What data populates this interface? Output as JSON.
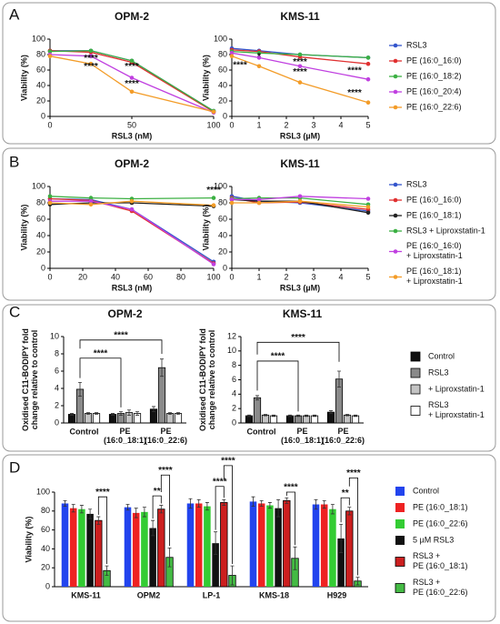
{
  "chart_data": [
    {
      "panel": "A",
      "type": "line",
      "title": "OPM-2",
      "x": [
        0,
        25,
        50,
        100
      ],
      "xlim": [
        0,
        100
      ],
      "xticks": [
        0,
        50,
        100
      ],
      "ylim": [
        0,
        100
      ],
      "yticks": [
        0,
        20,
        40,
        60,
        80,
        100
      ],
      "xlabel": "RSL3 (nM)",
      "ylabel": "Viability (%)",
      "series": [
        {
          "color": "#3355cc",
          "values": [
            85,
            85,
            72,
            7
          ]
        },
        {
          "color": "#e03030",
          "values": [
            85,
            83,
            70,
            6
          ]
        },
        {
          "color": "#3cb043",
          "values": [
            84,
            85,
            72,
            7
          ]
        },
        {
          "color": "#c040e0",
          "values": [
            80,
            78,
            50,
            5
          ]
        },
        {
          "color": "#f39c28",
          "values": [
            78,
            68,
            32,
            6
          ]
        }
      ],
      "annotations": [
        "****",
        "****",
        "****",
        "****"
      ]
    },
    {
      "type": "line",
      "title": "KMS-11",
      "x": [
        0,
        1,
        2.5,
        5
      ],
      "xlim": [
        0,
        5
      ],
      "xticks": [
        0,
        1,
        2,
        3,
        4,
        5
      ],
      "ylim": [
        0,
        100
      ],
      "yticks": [
        0,
        20,
        40,
        60,
        80,
        100
      ],
      "xlabel": "RSL3 (µM)",
      "ylabel": "Viability (%)",
      "series": [
        {
          "name": "RSL3",
          "color": "#3355cc",
          "values": [
            88,
            85,
            80,
            76
          ]
        },
        {
          "name": "PE (16:0_16:0)",
          "color": "#e03030",
          "values": [
            86,
            84,
            77,
            68
          ]
        },
        {
          "name": "PE (16:0_18:2)",
          "color": "#3cb043",
          "values": [
            84,
            82,
            80,
            76
          ]
        },
        {
          "name": "PE (16:0_20:4)",
          "color": "#c040e0",
          "values": [
            82,
            76,
            65,
            48
          ]
        },
        {
          "name": "PE (16:0_22:6)",
          "color": "#f39c28",
          "values": [
            78,
            65,
            44,
            18
          ]
        }
      ],
      "annotations": [
        "****",
        "*",
        "****",
        "****",
        "****",
        "****"
      ]
    },
    {
      "panel": "B",
      "type": "line",
      "title": "OPM-2",
      "x": [
        0,
        25,
        50,
        100
      ],
      "xlim": [
        0,
        100
      ],
      "xticks": [
        0,
        20,
        40,
        60,
        80,
        100
      ],
      "ylim": [
        0,
        100
      ],
      "yticks": [
        0,
        20,
        40,
        60,
        80,
        100
      ],
      "xlabel": "RSL3 (nM)",
      "ylabel": "Viability (%)",
      "series": [
        {
          "color": "#3355cc",
          "values": [
            85,
            84,
            72,
            8
          ]
        },
        {
          "color": "#e03030",
          "values": [
            85,
            83,
            70,
            6
          ]
        },
        {
          "color": "#222222",
          "values": [
            78,
            80,
            80,
            76
          ]
        },
        {
          "color": "#3cb043",
          "values": [
            88,
            86,
            85,
            86
          ]
        },
        {
          "color": "#c040e0",
          "values": [
            82,
            82,
            72,
            5
          ]
        },
        {
          "color": "#f39c28",
          "values": [
            80,
            78,
            82,
            77
          ]
        }
      ],
      "annotations": [
        "****"
      ]
    },
    {
      "type": "line",
      "title": "KMS-11",
      "x": [
        0,
        1,
        2.5,
        5
      ],
      "xlim": [
        0,
        5
      ],
      "xticks": [
        0,
        1,
        2,
        3,
        4,
        5
      ],
      "ylim": [
        0,
        100
      ],
      "yticks": [
        0,
        20,
        40,
        60,
        80,
        100
      ],
      "xlabel": "RSL3 (µM)",
      "ylabel": "Viability (%)",
      "series": [
        {
          "name": "RSL3",
          "color": "#3355cc",
          "values": [
            88,
            82,
            80,
            70
          ]
        },
        {
          "name": "PE (16:0_16:0)",
          "color": "#e03030",
          "values": [
            86,
            80,
            81,
            72
          ]
        },
        {
          "name": "PE (16:0_18:1)",
          "color": "#222222",
          "values": [
            84,
            82,
            82,
            68
          ]
        },
        {
          "name": "RSL3 + Liproxstatin-1",
          "color": "#3cb043",
          "values": [
            85,
            86,
            86,
            78
          ]
        },
        {
          "name": "PE (16:0_16:0)\n+ Liproxstatin-1",
          "color": "#c040e0",
          "values": [
            84,
            84,
            88,
            85
          ]
        },
        {
          "name": "PE (16:0_18:1)\n+ Liproxstatin-1",
          "color": "#f39c28",
          "values": [
            80,
            80,
            82,
            75
          ]
        }
      ]
    },
    {
      "panel": "C",
      "type": "bar",
      "title": "OPM-2",
      "categories": [
        "Control",
        "PE\n(16:0_18:1)",
        "PE\n(16:0_22:6)"
      ],
      "ylim": [
        0,
        10
      ],
      "yticks": [
        0,
        2,
        4,
        6,
        8,
        10
      ],
      "ylabel": "Oxidised C11-BODIPY fold\nchange relative to control",
      "series": [
        {
          "color": "#111111",
          "edgecolor": "#000000",
          "values": [
            1,
            1,
            1.6
          ],
          "errors": [
            0.1,
            0.1,
            0.3
          ]
        },
        {
          "color": "#8a8a8a",
          "edgecolor": "#000000",
          "values": [
            3.9,
            1.1,
            6.4
          ],
          "errors": [
            0.8,
            0.2,
            1.0
          ]
        },
        {
          "color": "#c4c4c4",
          "edgecolor": "#000000",
          "values": [
            1.1,
            1.2,
            1.1
          ],
          "errors": [
            0.1,
            0.3,
            0.1
          ]
        },
        {
          "color": "#ffffff",
          "edgecolor": "#000000",
          "values": [
            1.1,
            1.1,
            1.1
          ],
          "errors": [
            0.1,
            0.2,
            0.1
          ]
        }
      ],
      "annotations": [
        "****",
        "****"
      ]
    },
    {
      "type": "bar",
      "title": "KMS-11",
      "categories": [
        "Control",
        "PE\n(16:0_18:1)",
        "PE\n(16:0_22:6)"
      ],
      "ylim": [
        0,
        12
      ],
      "yticks": [
        0,
        2,
        4,
        6,
        8,
        10,
        12
      ],
      "ylabel": "Oxidised C11-BODIPY fold\nchange relative to control",
      "series": [
        {
          "name": "Control",
          "color": "#111111",
          "edgecolor": "#000000",
          "values": [
            1,
            1,
            1.5
          ],
          "errors": [
            0.1,
            0.1,
            0.2
          ]
        },
        {
          "name": "RSL3",
          "color": "#8a8a8a",
          "edgecolor": "#000000",
          "values": [
            3.5,
            1,
            6.1
          ],
          "errors": [
            0.3,
            0.1,
            1.1
          ]
        },
        {
          "name": "+ Liproxstatin-1",
          "color": "#c4c4c4",
          "edgecolor": "#000000",
          "values": [
            1.1,
            1,
            1.1
          ],
          "errors": [
            0.1,
            0.1,
            0.1
          ]
        },
        {
          "name": "RSL3\n+ Liproxstatin-1",
          "color": "#ffffff",
          "edgecolor": "#000000",
          "values": [
            1,
            1,
            1
          ],
          "errors": [
            0.1,
            0.1,
            0.1
          ]
        }
      ],
      "annotations": [
        "****",
        "****"
      ]
    },
    {
      "panel": "D",
      "type": "bar",
      "categories": [
        "KMS-11",
        "OPM2",
        "LP-1",
        "KMS-18",
        "H929"
      ],
      "ylim": [
        0,
        100
      ],
      "yticks": [
        0,
        20,
        40,
        60,
        80,
        100
      ],
      "ylabel": "Viability (%)",
      "series": [
        {
          "name": "Control",
          "color": "#2244ee",
          "values": [
            88,
            84,
            88,
            90,
            87
          ],
          "errors": [
            3,
            3,
            5,
            5,
            5
          ]
        },
        {
          "name": "PE (16:0_18:1)",
          "color": "#ee2222",
          "values": [
            83,
            78,
            88,
            88,
            87
          ],
          "errors": [
            4,
            5,
            4,
            3,
            4
          ]
        },
        {
          "name": "PE (16:0_22:6)",
          "color": "#33cc33",
          "values": [
            82,
            79,
            85,
            86,
            82
          ],
          "errors": [
            4,
            5,
            4,
            3,
            5
          ]
        },
        {
          "name": "5 µM RSL3",
          "color": "#111111",
          "values": [
            77,
            62,
            46,
            83,
            51
          ],
          "errors": [
            5,
            8,
            12,
            9,
            15
          ]
        },
        {
          "name": "RSL3 +\nPE (16:0_18:1)",
          "color": "#cc1f1f",
          "edgecolor": "#000000",
          "values": [
            70,
            82,
            89,
            91,
            80
          ],
          "errors": [
            4,
            4,
            3,
            3,
            4
          ]
        },
        {
          "name": "RSL3 +\nPE (16:0_22:6)",
          "color": "#44bb44",
          "edgecolor": "#000000",
          "values": [
            17,
            31,
            12,
            30,
            6
          ],
          "errors": [
            5,
            10,
            10,
            12,
            4
          ]
        }
      ],
      "annotations": [
        "****",
        "**",
        "****",
        "****",
        "****",
        "****",
        "**",
        "****"
      ]
    }
  ]
}
